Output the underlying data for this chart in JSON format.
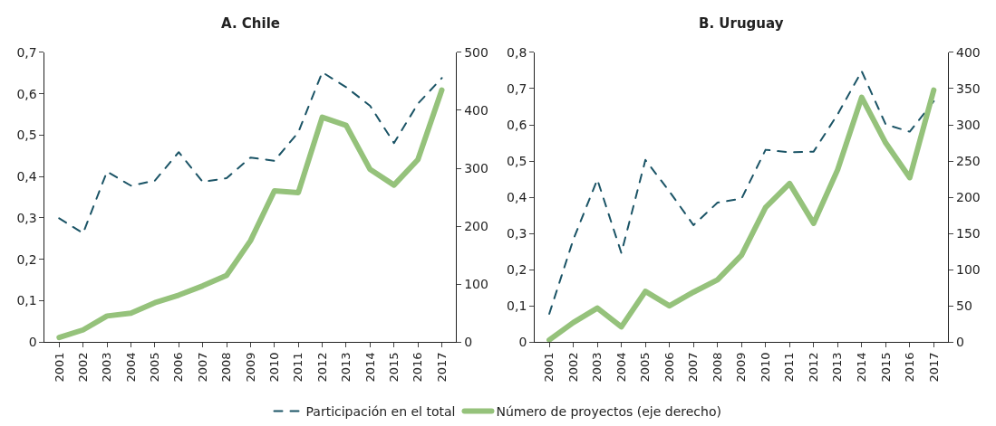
{
  "chart_data": [
    {
      "type": "line",
      "title": "A. Chile",
      "categories": [
        "2001",
        "2002",
        "2003",
        "2004",
        "2005",
        "2006",
        "2007",
        "2008",
        "2009",
        "2010",
        "2011",
        "2012",
        "2013",
        "2014",
        "2015",
        "2016",
        "2017"
      ],
      "series": [
        {
          "color": "#1b5466",
          "line_style": "dashed",
          "values": [
            0.299,
            0.263,
            0.412,
            0.378,
            0.39,
            0.459,
            0.387,
            0.396,
            0.446,
            0.438,
            0.507,
            0.652,
            0.616,
            0.571,
            0.481,
            0.576,
            0.638
          ]
        },
        {
          "color": "#95c27b",
          "line_style": "solid",
          "axis": "y2",
          "values": [
            8,
            21,
            45,
            50,
            68,
            81,
            97,
            115,
            175,
            261,
            258,
            388,
            374,
            298,
            271,
            315,
            435
          ]
        }
      ],
      "ylim": [
        0,
        0.7
      ],
      "yticks": [
        0,
        {
          "value": 0.1,
          "label": "0,1"
        },
        {
          "value": 0.2,
          "label": "0,2"
        },
        {
          "value": 0.3,
          "label": "0,3"
        },
        {
          "value": 0.4,
          "label": "0,4"
        },
        {
          "value": 0.5,
          "label": "0,5"
        },
        {
          "value": 0.6,
          "label": "0,6"
        },
        {
          "value": 0.7,
          "label": "0,7"
        }
      ],
      "y2lim": [
        0,
        500
      ],
      "y2ticks": [
        0,
        100,
        200,
        300,
        400,
        500
      ],
      "grid": false,
      "marker": "none"
    },
    {
      "type": "line",
      "title": "B. Uruguay",
      "categories": [
        "2001",
        "2002",
        "2003",
        "2004",
        "2005",
        "2006",
        "2007",
        "2008",
        "2009",
        "2010",
        "2011",
        "2012",
        "2013",
        "2014",
        "2015",
        "2016",
        "2017"
      ],
      "series": [
        {
          "name": "Participación en el total",
          "color": "#1b5466",
          "line_style": "dashed",
          "values": [
            0.078,
            0.283,
            0.449,
            0.246,
            0.503,
            0.416,
            0.323,
            0.385,
            0.396,
            0.531,
            0.524,
            0.526,
            0.629,
            0.748,
            0.601,
            0.581,
            0.665
          ]
        },
        {
          "name": "Número de proyectos (eje derecho)",
          "color": "#95c27b",
          "line_style": "solid",
          "axis": "y2",
          "values": [
            3,
            27,
            47,
            21,
            70,
            50,
            69,
            86,
            120,
            186,
            219,
            164,
            238,
            338,
            275,
            227,
            348
          ]
        }
      ],
      "ylim": [
        0,
        0.8
      ],
      "yticks": [
        0,
        {
          "value": 0.1,
          "label": "0,1"
        },
        {
          "value": 0.2,
          "label": "0,2"
        },
        {
          "value": 0.3,
          "label": "0,3"
        },
        {
          "value": 0.4,
          "label": "0,4"
        },
        {
          "value": 0.5,
          "label": "0,5"
        },
        {
          "value": 0.6,
          "label": "0,6"
        },
        {
          "value": 0.7,
          "label": "0,7"
        },
        {
          "value": 0.8,
          "label": "0,8"
        }
      ],
      "y2lim": [
        0,
        400
      ],
      "y2ticks": [
        0,
        50,
        100,
        150,
        200,
        250,
        300,
        350,
        400
      ],
      "grid": false,
      "legend": "bottom",
      "marker": "none"
    }
  ]
}
